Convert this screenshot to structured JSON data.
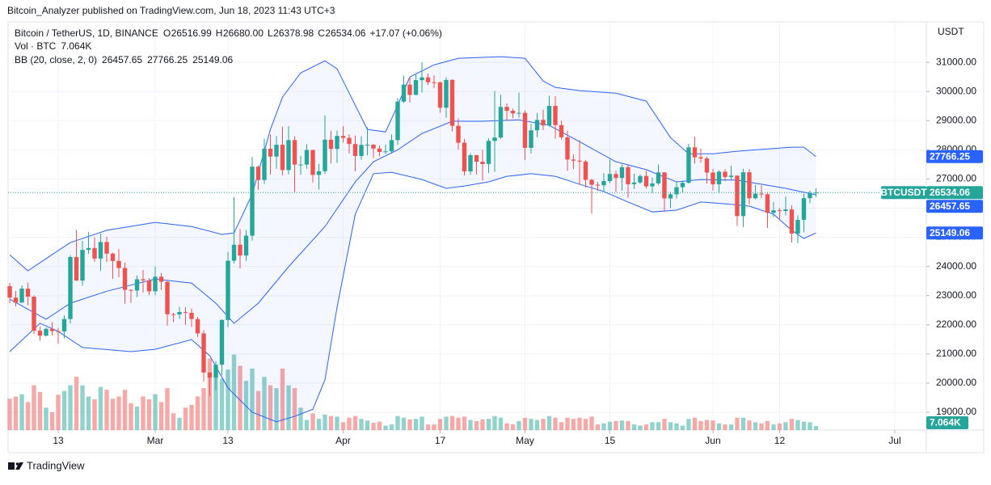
{
  "published": "Bitcoin_Analyzer published on TradingView.com, Jun 18, 2023 11:43 UTC+3",
  "brand": "TradingView",
  "chart_data": {
    "type": "candlestick",
    "title": "Bitcoin / TetherUS, 1D, BINANCE",
    "symbol": "BTCUSDT",
    "currency": "USDT",
    "legend": {
      "ohlc": [
        {
          "key": "O",
          "value": "26516.99"
        },
        {
          "key": "H",
          "value": "26680.00"
        },
        {
          "key": "L",
          "value": "26378.98"
        },
        {
          "key": "C",
          "value": "26534.06"
        }
      ],
      "change": "+17.07 (+0.06%)"
    },
    "up_color": "#26a69a",
    "down_color": "#ef5350",
    "xlim": [
      -0.27,
      151.07
    ],
    "xticks": [
      {
        "value": 8,
        "label": "13"
      },
      {
        "value": 24,
        "label": "Mar"
      },
      {
        "value": 36,
        "label": "13"
      },
      {
        "value": 55,
        "label": "Apr"
      },
      {
        "value": 71,
        "label": "17"
      },
      {
        "value": 85,
        "label": "May"
      },
      {
        "value": 99,
        "label": "15"
      },
      {
        "value": 116,
        "label": "Jun"
      },
      {
        "value": 127,
        "label": "12"
      },
      {
        "value": 146,
        "label": "Jul"
      }
    ],
    "ylim": [
      18390,
      32390
    ],
    "yticks": [
      {
        "value": 19000,
        "label": "19000.00"
      },
      {
        "value": 20000,
        "label": "20000.00"
      },
      {
        "value": 21000,
        "label": "21000.00"
      },
      {
        "value": 22000,
        "label": "22000.00"
      },
      {
        "value": 23000,
        "label": "23000.00"
      },
      {
        "value": 24000,
        "label": "24000.00"
      },
      {
        "value": 25000,
        "label": "25000.00"
      },
      {
        "value": 26000,
        "label": "26000.00"
      },
      {
        "value": 27000,
        "label": "27000.00"
      },
      {
        "value": 28000,
        "label": "28000.00"
      },
      {
        "value": 29000,
        "label": "29000.00"
      },
      {
        "value": 30000,
        "label": "30000.00"
      },
      {
        "value": 31000,
        "label": "31000.00"
      }
    ],
    "grid": true,
    "ohlc": {
      "open": [
        23323,
        22932,
        22762,
        23240,
        22963,
        21796,
        21625,
        21862,
        21783,
        21773,
        22199,
        24324,
        23517,
        24569,
        24631,
        24271,
        24838,
        24439,
        24188,
        23947,
        23198,
        23175,
        23561,
        23522,
        23147,
        23647,
        23475,
        22362,
        22354,
        22436,
        22409,
        22197,
        21705,
        20363,
        20187,
        20632,
        22163,
        24197,
        24746,
        24375,
        25055,
        27423,
        26965,
        28038,
        27768,
        28175,
        27307,
        28333,
        27493,
        27494,
        27994,
        27139,
        27268,
        28348,
        28033,
        28478,
        28411,
        28200,
        27790,
        28169,
        28175,
        28044,
        27926,
        27948,
        28333,
        29653,
        30235,
        29884,
        30390,
        30485,
        30318,
        30315,
        29445,
        30397,
        28823,
        28245,
        27262,
        27817,
        27591,
        27514,
        28307,
        28422,
        29473,
        29340,
        29248,
        29268,
        28068,
        28669,
        29026,
        28838,
        29506,
        28848,
        28430,
        27668,
        27628,
        27598,
        26969,
        26805,
        26784,
        26930,
        27171,
        27033,
        27405,
        26821,
        26880,
        27102,
        26747,
        26849,
        27225,
        26334,
        26476,
        26719,
        26868,
        28085,
        27745,
        27702,
        27219,
        26819,
        27249,
        27069,
        27115,
        25728,
        27230,
        26339,
        26498,
        26477,
        25841,
        25925,
        25902,
        25954,
        25128,
        25598,
        26343,
        26516.99
      ],
      "high": [
        23434,
        23158,
        23350,
        23453,
        23011,
        21939,
        21906,
        22090,
        21890,
        22325,
        24380,
        25250,
        24877,
        25176,
        24998,
        25121,
        25020,
        24475,
        24600,
        24133,
        23219,
        23689,
        23880,
        23600,
        24000,
        23775,
        23500,
        22410,
        22615,
        22602,
        22558,
        22270,
        21819,
        20367,
        20750,
        22189,
        24500,
        26386,
        25294,
        25250,
        27756,
        27470,
        28383,
        28528,
        28470,
        28795,
        28812,
        28463,
        27795,
        28194,
        28000,
        27516,
        29183,
        28650,
        28659,
        28817,
        28530,
        28490,
        28462,
        28770,
        28195,
        28142,
        28175,
        28530,
        29770,
        30545,
        30500,
        30620,
        31000,
        30619,
        30550,
        30337,
        30485,
        30420,
        29080,
        28374,
        27880,
        27825,
        28000,
        28390,
        30020,
        29890,
        29590,
        29415,
        29960,
        29350,
        28890,
        29265,
        29375,
        29850,
        29840,
        29000,
        28660,
        27840,
        28330,
        27650,
        27000,
        26900,
        27200,
        27660,
        27290,
        27500,
        27485,
        27183,
        27155,
        27279,
        27050,
        27500,
        27240,
        26550,
        26930,
        26950,
        28200,
        28447,
        28045,
        27765,
        27350,
        27300,
        27342,
        27455,
        27130,
        27355,
        27340,
        26800,
        26786,
        26530,
        26210,
        26000,
        26400,
        26100,
        25750,
        26500,
        26600,
        26680
      ],
      "low": [
        22746,
        22628,
        22745,
        22666,
        21688,
        21451,
        21599,
        21630,
        21351,
        21532,
        22047,
        23505,
        23339,
        24437,
        24156,
        23840,
        24148,
        23574,
        23628,
        22722,
        22751,
        22955,
        23106,
        23020,
        23020,
        23195,
        21971,
        22086,
        22199,
        22000,
        21927,
        21580,
        20051,
        19549,
        19765,
        20272,
        21918,
        24102,
        23930,
        24192,
        24890,
        26630,
        26830,
        27154,
        27352,
        27130,
        27159,
        26544,
        27146,
        27350,
        26882,
        26631,
        27174,
        27531,
        27550,
        28245,
        27871,
        27261,
        27659,
        27812,
        27720,
        27778,
        27862,
        27873,
        28171,
        29609,
        29623,
        29872,
        29966,
        30227,
        30120,
        29270,
        29100,
        28630,
        28010,
        27125,
        27140,
        27160,
        26942,
        27207,
        27245,
        28375,
        29000,
        29085,
        29100,
        27650,
        27872,
        28432,
        28675,
        28800,
        28384,
        28356,
        27275,
        27345,
        26800,
        26705,
        25811,
        26600,
        26563,
        26855,
        26560,
        26600,
        26356,
        26654,
        26833,
        26670,
        26520,
        26800,
        25871,
        26000,
        26330,
        26541,
        26848,
        27525,
        27560,
        26840,
        26605,
        26505,
        26920,
        26950,
        25388,
        25350,
        26120,
        26300,
        26340,
        25321,
        25700,
        25600,
        25750,
        24820,
        24800,
        25170,
        26170,
        26378.98
      ],
      "close": [
        22932,
        22762,
        23240,
        22963,
        21796,
        21625,
        21862,
        21783,
        21773,
        22199,
        24324,
        23517,
        24569,
        24631,
        24271,
        24838,
        24439,
        24188,
        23947,
        23198,
        23175,
        23561,
        23522,
        23147,
        23647,
        23475,
        22362,
        22354,
        22436,
        22409,
        22197,
        21705,
        20363,
        20187,
        20632,
        22163,
        24197,
        24746,
        24375,
        25055,
        27423,
        26965,
        28038,
        27768,
        28175,
        27307,
        28333,
        27493,
        27494,
        27994,
        27139,
        27268,
        28348,
        28033,
        28478,
        28411,
        28200,
        27790,
        28169,
        28175,
        28044,
        27926,
        27948,
        28333,
        29653,
        30235,
        29884,
        30390,
        30485,
        30318,
        30315,
        29445,
        30397,
        28823,
        28245,
        27262,
        27817,
        27591,
        27514,
        28307,
        28422,
        29473,
        29340,
        29248,
        29268,
        28068,
        28669,
        29026,
        28838,
        29506,
        28848,
        28430,
        27668,
        27628,
        27598,
        26969,
        26805,
        26784,
        26930,
        27171,
        27033,
        27405,
        26821,
        26880,
        27102,
        26747,
        26849,
        27225,
        26334,
        26476,
        26719,
        26868,
        28085,
        27745,
        27702,
        27219,
        26819,
        27249,
        27069,
        27115,
        25728,
        27230,
        26339,
        26498,
        26477,
        25841,
        25925,
        25902,
        25954,
        25128,
        25598,
        26343,
        26516,
        26534.06
      ]
    },
    "volume": {
      "name": "Vol · BTC",
      "ylim": [
        0,
        730000
      ],
      "last_label": "7.064K",
      "values": [
        56000,
        60000,
        64000,
        50000,
        80000,
        68000,
        40000,
        32000,
        63000,
        70000,
        80000,
        95000,
        80000,
        60000,
        55000,
        77000,
        72000,
        56000,
        60000,
        72000,
        48000,
        42000,
        60000,
        55000,
        64000,
        50000,
        75000,
        30000,
        22000,
        40000,
        45000,
        60000,
        75000,
        128000,
        110000,
        92000,
        108000,
        135000,
        115000,
        88000,
        110000,
        70000,
        95000,
        80000,
        75000,
        110000,
        80000,
        75000,
        40000,
        18000,
        30000,
        20000,
        28000,
        25000,
        24000,
        14000,
        22000,
        25000,
        20000,
        17000,
        13000,
        15000,
        8000,
        10000,
        25000,
        22000,
        19000,
        20000,
        24000,
        10000,
        10000,
        20000,
        24000,
        25000,
        22000,
        24000,
        18000,
        16000,
        19000,
        20000,
        25000,
        22000,
        12000,
        10000,
        16000,
        22000,
        20000,
        18000,
        20000,
        25000,
        22000,
        14000,
        22000,
        20000,
        22000,
        20000,
        24000,
        10000,
        12000,
        15000,
        16000,
        17000,
        16000,
        10000,
        8000,
        10000,
        14000,
        14000,
        20000,
        14000,
        12000,
        8000,
        20000,
        22000,
        16000,
        18000,
        17000,
        12000,
        10000,
        10000,
        22000,
        22000,
        17000,
        14000,
        12000,
        16000,
        10000,
        12000,
        14000,
        20000,
        18000,
        15000,
        14000,
        7064
      ]
    },
    "bb": {
      "name": "BB (20, close, 2, 0)",
      "color": "#2962ff",
      "lines": [
        {
          "x": [
            0,
            6,
            10,
            16,
            24,
            30,
            34,
            37,
            41,
            46,
            52,
            57,
            60,
            64,
            68,
            73,
            78,
            84,
            89,
            94,
            100,
            105,
            110,
            114,
            120,
            124,
            128,
            133
          ],
          "values": [
            22880,
            22190,
            22740,
            23150,
            23570,
            23430,
            22740,
            22050,
            22740,
            23990,
            25370,
            26900,
            27590,
            28000,
            28560,
            28980,
            28980,
            29030,
            28840,
            28280,
            27590,
            27320,
            26900,
            26980,
            26960,
            26820,
            26680,
            26457.65
          ]
        },
        {
          "x": [
            0,
            3,
            6,
            10,
            16,
            24,
            30,
            35,
            37,
            40,
            43,
            45,
            48,
            52,
            54,
            56,
            59,
            62,
            64,
            66,
            70,
            74,
            81,
            85,
            88,
            90,
            94,
            100,
            105,
            109,
            112,
            116,
            120,
            125,
            129,
            131,
            133
          ],
          "values": [
            24400,
            23850,
            24270,
            24820,
            25240,
            25510,
            25370,
            25100,
            25150,
            26480,
            28700,
            29810,
            30640,
            31055,
            30780,
            29945,
            28700,
            28615,
            29530,
            30500,
            30915,
            31140,
            31195,
            31140,
            30360,
            30140,
            30030,
            29945,
            29670,
            28420,
            27865,
            27865,
            27950,
            28030,
            28090,
            28090,
            27766.25
          ]
        },
        {
          "x": [
            0,
            5,
            8,
            12,
            20,
            24,
            30,
            33,
            36,
            40,
            44,
            47,
            50,
            52,
            54,
            57,
            60,
            63,
            68,
            72,
            75,
            79,
            82,
            86,
            90,
            94,
            98,
            102,
            106,
            110,
            114,
            118,
            122,
            126,
            129,
            131,
            133
          ],
          "values": [
            21080,
            22050,
            21770,
            21220,
            21080,
            21160,
            21490,
            20940,
            19830,
            19000,
            18670,
            18860,
            19100,
            20110,
            22600,
            25790,
            27180,
            27230,
            26980,
            26680,
            26760,
            26900,
            27090,
            27180,
            27090,
            26820,
            26570,
            26210,
            25870,
            25930,
            26210,
            26150,
            26070,
            25790,
            25240,
            24960,
            25149.06
          ]
        }
      ]
    }
  }
}
